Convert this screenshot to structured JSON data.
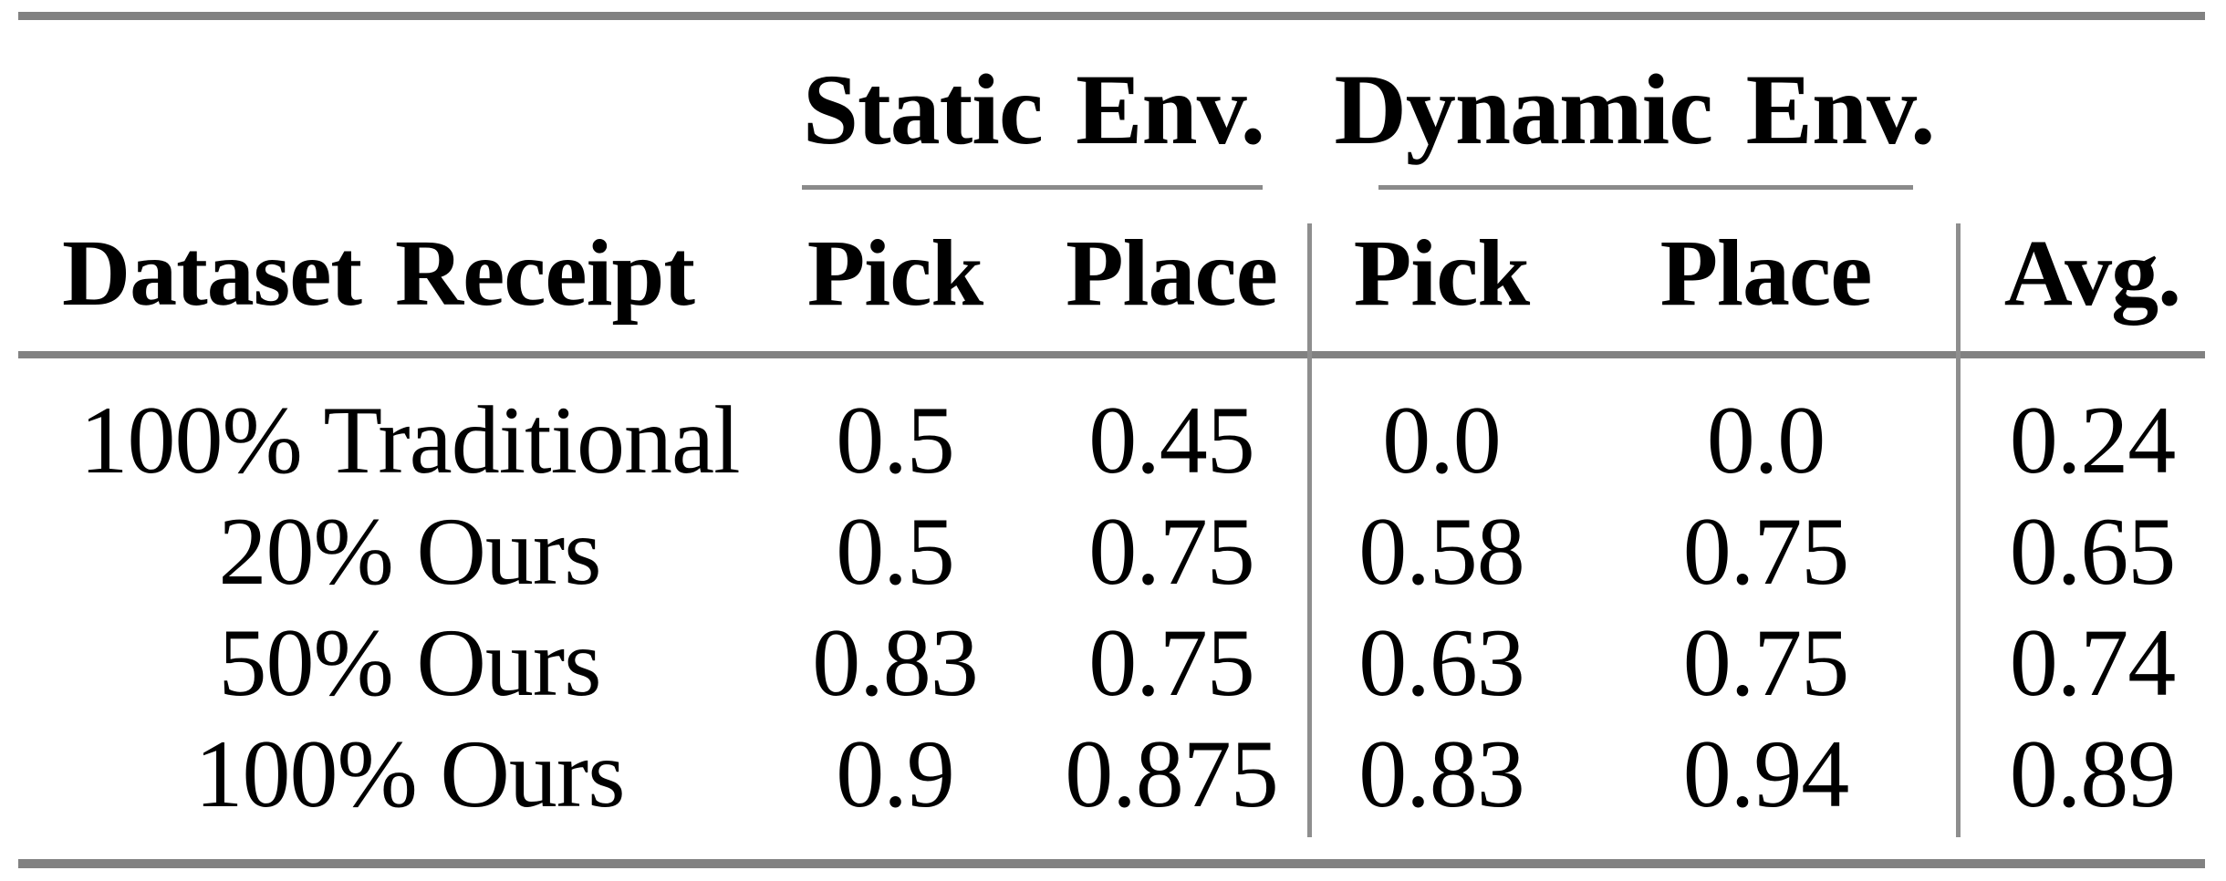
{
  "table": {
    "group_headers": {
      "static": "Static Env.",
      "dynamic": "Dynamic Env."
    },
    "columns": {
      "label": "Dataset Receipt",
      "static_pick": "Pick",
      "static_place": "Place",
      "dynamic_pick": "Pick",
      "dynamic_place": "Place",
      "avg": "Avg."
    },
    "rows": [
      {
        "label": "100% Traditional",
        "static_pick": "0.5",
        "static_place": "0.45",
        "dynamic_pick": "0.0",
        "dynamic_place": "0.0",
        "avg": "0.24"
      },
      {
        "label": "20% Ours",
        "static_pick": "0.5",
        "static_place": "0.75",
        "dynamic_pick": "0.58",
        "dynamic_place": "0.75",
        "avg": "0.65"
      },
      {
        "label": "50% Ours",
        "static_pick": "0.83",
        "static_place": "0.75",
        "dynamic_pick": "0.63",
        "dynamic_place": "0.75",
        "avg": "0.74"
      },
      {
        "label": "100% Ours",
        "static_pick": "0.9",
        "static_place": "0.875",
        "dynamic_pick": "0.83",
        "dynamic_place": "0.94",
        "avg": "0.89"
      }
    ],
    "colors": {
      "rule_gray": "#818181",
      "thin_rule_gray": "#8a8a8a",
      "text": "#000000",
      "background": "#ffffff"
    }
  },
  "chart_data": {
    "type": "table",
    "title": "",
    "column_groups": [
      "",
      "Static Env.",
      "Static Env.",
      "Dynamic Env.",
      "Dynamic Env.",
      ""
    ],
    "columns": [
      "Dataset Receipt",
      "Pick",
      "Place",
      "Pick",
      "Place",
      "Avg."
    ],
    "rows": [
      [
        "100% Traditional",
        0.5,
        0.45,
        0.0,
        0.0,
        0.24
      ],
      [
        "20% Ours",
        0.5,
        0.75,
        0.58,
        0.75,
        0.65
      ],
      [
        "50% Ours",
        0.83,
        0.75,
        0.63,
        0.75,
        0.74
      ],
      [
        "100% Ours",
        0.9,
        0.875,
        0.83,
        0.94,
        0.89
      ]
    ]
  }
}
